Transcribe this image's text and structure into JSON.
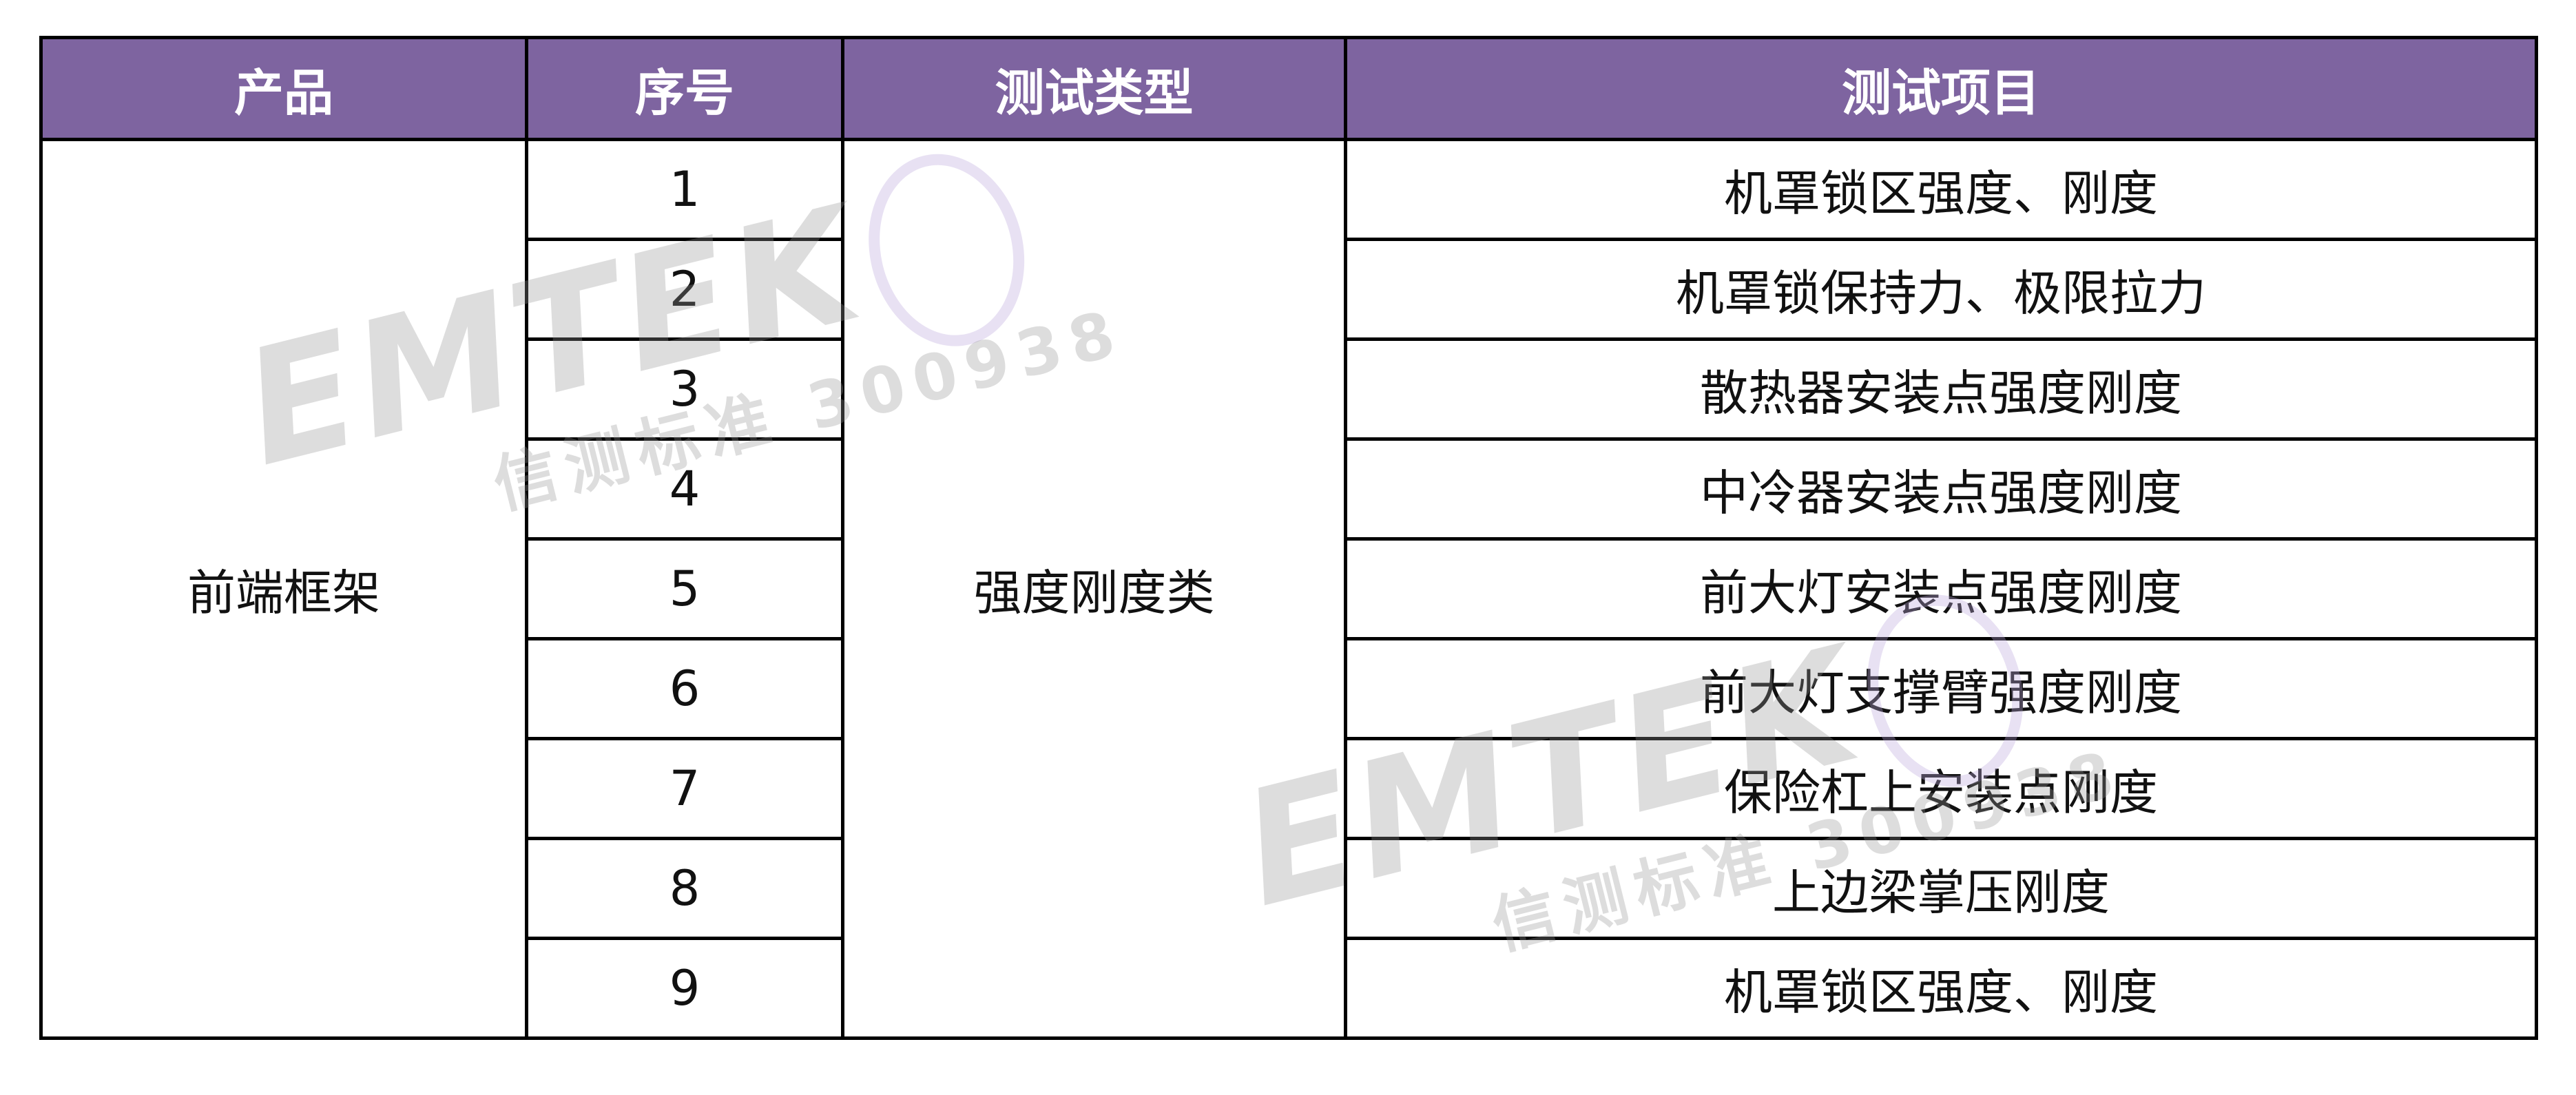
{
  "header": {
    "product": "产品",
    "index": "序号",
    "test_type": "测试类型",
    "test_item": "测试项目"
  },
  "product": "前端框架",
  "test_type": "强度刚度类",
  "rows": [
    {
      "index": "1",
      "item": "机罩锁区强度、刚度"
    },
    {
      "index": "2",
      "item": "机罩锁保持力、极限拉力"
    },
    {
      "index": "3",
      "item": "散热器安装点强度刚度"
    },
    {
      "index": "4",
      "item": "中冷器安装点强度刚度"
    },
    {
      "index": "5",
      "item": "前大灯安装点强度刚度"
    },
    {
      "index": "6",
      "item": "前大灯支撑臂强度刚度"
    },
    {
      "index": "7",
      "item": "保险杠上安装点刚度"
    },
    {
      "index": "8",
      "item": "上边梁掌压刚度"
    },
    {
      "index": "9",
      "item": "机罩锁区强度、刚度"
    }
  ],
  "watermark": {
    "logo": "EMTEK",
    "subtitle": "信测标准 300938"
  },
  "colors": {
    "header_bg": "#7E64A0",
    "header_text": "#FFFFFF",
    "border": "#000000"
  }
}
